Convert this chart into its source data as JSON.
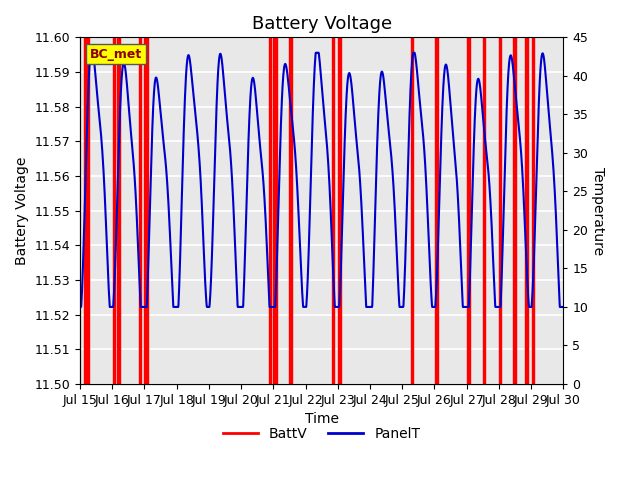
{
  "title": "Battery Voltage",
  "xlabel": "Time",
  "ylabel_left": "Battery Voltage",
  "ylabel_right": "Temperature",
  "xlim": [
    0,
    15
  ],
  "ylim_left": [
    11.5,
    11.6
  ],
  "ylim_right": [
    0,
    45
  ],
  "yticks_left": [
    11.5,
    11.51,
    11.52,
    11.53,
    11.54,
    11.55,
    11.56,
    11.57,
    11.58,
    11.59,
    11.6
  ],
  "yticks_right": [
    0,
    5,
    10,
    15,
    20,
    25,
    30,
    35,
    40,
    45
  ],
  "xtick_labels": [
    "Jul 15",
    "Jul 16",
    "Jul 17",
    "Jul 18",
    "Jul 19",
    "Jul 20",
    "Jul 21",
    "Jul 22",
    "Jul 23",
    "Jul 24",
    "Jul 25",
    "Jul 26",
    "Jul 27",
    "Jul 28",
    "Jul 29",
    "Jul 30"
  ],
  "xtick_positions": [
    0,
    1,
    2,
    3,
    4,
    5,
    6,
    7,
    8,
    9,
    10,
    11,
    12,
    13,
    14,
    15
  ],
  "background_color": "#e8e8e8",
  "grid_color": "#ffffff",
  "annotation_text": "BC_met",
  "batt_color": "#ff0000",
  "panel_color": "#0000cc",
  "legend_batt": "BattV",
  "legend_panel": "PanelT",
  "figsize": [
    6.4,
    4.8
  ],
  "dpi": 100,
  "title_fontsize": 13,
  "axis_label_fontsize": 10,
  "tick_label_fontsize": 9,
  "red_spans": [
    [
      0.12,
      0.18
    ],
    [
      0.22,
      0.28
    ],
    [
      1.02,
      1.1
    ],
    [
      1.15,
      1.23
    ],
    [
      1.82,
      1.9
    ],
    [
      2.0,
      2.1
    ],
    [
      5.88,
      5.94
    ],
    [
      6.0,
      6.1
    ],
    [
      6.5,
      6.58
    ],
    [
      7.82,
      7.9
    ],
    [
      8.0,
      8.1
    ],
    [
      10.28,
      10.34
    ],
    [
      11.02,
      11.1
    ],
    [
      12.02,
      12.1
    ],
    [
      12.5,
      12.58
    ],
    [
      13.0,
      13.08
    ],
    [
      13.45,
      13.53
    ],
    [
      13.82,
      13.9
    ],
    [
      14.02,
      14.1
    ]
  ]
}
